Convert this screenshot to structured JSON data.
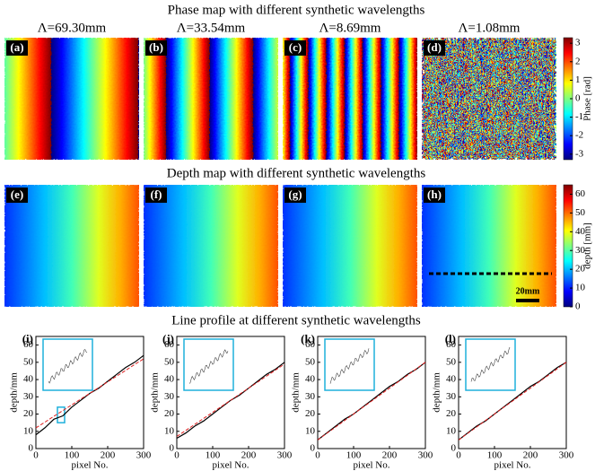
{
  "figure": {
    "rows": [
      {
        "title": "Phase map with different synthetic wavelengths",
        "panels": [
          {
            "label": "(a)",
            "wavelength": "Λ=69.30mm"
          },
          {
            "label": "(b)",
            "wavelength": "Λ=33.54mm"
          },
          {
            "label": "(c)",
            "wavelength": "Λ=8.69mm"
          },
          {
            "label": "(d)",
            "wavelength": "Λ=1.08mm"
          }
        ],
        "colorbar": {
          "label": "Phase [rad]",
          "lim": [
            -3.3,
            3.3
          ],
          "ticks": [
            3,
            2,
            1,
            0,
            -1,
            -2,
            -3
          ]
        }
      },
      {
        "title": "Depth map with different synthetic wavelengths",
        "panels": [
          {
            "label": "(e)"
          },
          {
            "label": "(f)"
          },
          {
            "label": "(g)"
          },
          {
            "label": "(h)"
          }
        ],
        "colorbar": {
          "label": "depth [mm]",
          "lim": [
            0,
            65
          ],
          "ticks": [
            60,
            50,
            40,
            30,
            20,
            10,
            0
          ]
        },
        "scale_bar": "20mm"
      }
    ],
    "profile_title": "Line profile at different synthetic wavelengths",
    "chart_data": [
      {
        "type": "line",
        "label": "(i)",
        "xlabel": "pixel No.",
        "ylabel": "depth/mm",
        "xlim": [
          0,
          300
        ],
        "ylim": [
          0,
          65
        ],
        "xticks": [
          0,
          100,
          200,
          300
        ],
        "yticks": [
          0,
          10,
          20,
          30,
          40,
          50,
          60
        ],
        "x": [
          0,
          25,
          50,
          75,
          100,
          125,
          150,
          175,
          200,
          225,
          250,
          275,
          300
        ],
        "series": [
          {
            "color": "#000000",
            "values": [
              8,
              12,
              17,
              19,
              24,
              28,
              32,
              35,
              39,
              43,
              47,
              50,
              54
            ]
          },
          {
            "color": "#e02020",
            "dashed": true,
            "values": [
              12,
              15.3,
              18.7,
              22,
              25.3,
              28.7,
              32,
              35.3,
              38.7,
              42,
              45.3,
              48.7,
              52
            ]
          }
        ]
      },
      {
        "type": "line",
        "label": "(j)",
        "xlabel": "pixel No.",
        "ylabel": "depth/mm",
        "xlim": [
          0,
          300
        ],
        "ylim": [
          0,
          65
        ],
        "xticks": [
          0,
          100,
          200,
          300
        ],
        "yticks": [
          0,
          10,
          20,
          30,
          40,
          50,
          60
        ],
        "x": [
          0,
          25,
          50,
          75,
          100,
          125,
          150,
          175,
          200,
          225,
          250,
          275,
          300
        ],
        "series": [
          {
            "color": "#000000",
            "values": [
              6,
              9,
              13,
              16,
              20,
              24,
              28,
              31,
              35,
              39,
              43,
              46,
              50
            ]
          },
          {
            "color": "#e02020",
            "dashed": true,
            "values": [
              7,
              10.5,
              14,
              17.5,
              21,
              24.5,
              28,
              31.5,
              35,
              38.5,
              42,
              45.5,
              49
            ]
          }
        ]
      },
      {
        "type": "line",
        "label": "(k)",
        "xlabel": "pixel No.",
        "ylabel": "depth/mm",
        "xlim": [
          0,
          300
        ],
        "ylim": [
          0,
          65
        ],
        "xticks": [
          0,
          100,
          200,
          300
        ],
        "yticks": [
          0,
          10,
          20,
          30,
          40,
          50,
          60
        ],
        "x": [
          0,
          25,
          50,
          75,
          100,
          125,
          150,
          175,
          200,
          225,
          250,
          275,
          300
        ],
        "series": [
          {
            "color": "#000000",
            "values": [
              5,
              9,
              13,
              17,
              20,
              24,
              28,
              32,
              36,
              39,
              43,
              46,
              50
            ]
          },
          {
            "color": "#e02020",
            "dashed": true,
            "values": [
              5,
              8.8,
              12.5,
              16.3,
              20,
              23.8,
              27.5,
              31.3,
              35,
              38.8,
              42.5,
              46.3,
              50
            ]
          }
        ]
      },
      {
        "type": "line",
        "label": "(l)",
        "xlabel": "pixel No.",
        "ylabel": "depth/mm",
        "xlim": [
          0,
          300
        ],
        "ylim": [
          0,
          65
        ],
        "xticks": [
          0,
          100,
          200,
          300
        ],
        "yticks": [
          0,
          10,
          20,
          30,
          40,
          50,
          60
        ],
        "x": [
          0,
          25,
          50,
          75,
          100,
          125,
          150,
          175,
          200,
          225,
          250,
          275,
          300
        ],
        "series": [
          {
            "color": "#000000",
            "values": [
              5,
              9,
              13,
              16,
              20,
              24,
              28,
              32,
              36,
              39,
              43,
              47,
              50
            ]
          },
          {
            "color": "#e02020",
            "dashed": true,
            "values": [
              5,
              8.8,
              12.5,
              16.3,
              20,
              23.8,
              27.5,
              31.3,
              35,
              38.8,
              42.5,
              46.3,
              50
            ]
          }
        ]
      }
    ]
  }
}
